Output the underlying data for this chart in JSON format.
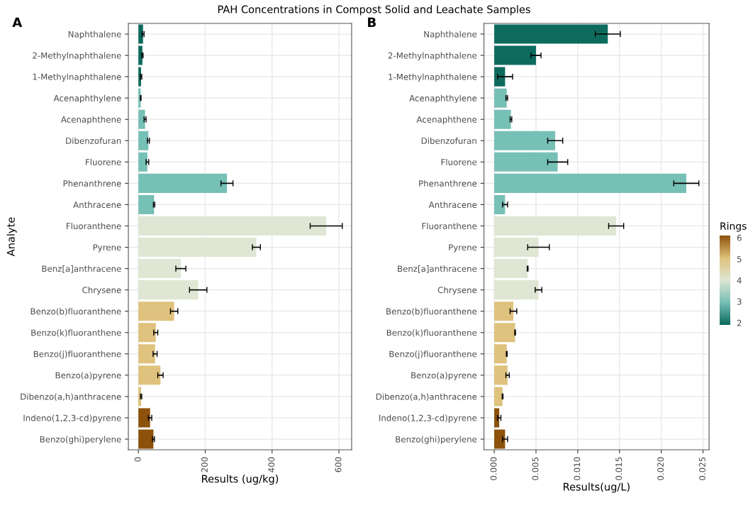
{
  "chart_data": [
    {
      "type": "bar",
      "orientation": "horizontal",
      "title": "PAH Concentrations in Compost Solid and Leachate Samples",
      "subtitle": "A",
      "xlabel": "Results (ug/kg)",
      "ylabel": "Analyte",
      "categories": [
        "Naphthalene",
        "2-Methylnaphthalene",
        "1-Methylnaphthalene",
        "Acenaphthylene",
        "Acenaphthene",
        "Dibenzofuran",
        "Fluorene",
        "Phenanthrene",
        "Anthracene",
        "Fluoranthene",
        "Pyrene",
        "Benz[a]anthracene",
        "Chrysene",
        "Benzo(b)fluoranthene",
        "Benzo(k)fluoranthene",
        "Benzo(j)fluoranthene",
        "Benzo(a)pyrene",
        "Dibenzo(a,h)anthracene",
        "Indeno(1,2,3-cd)pyrene",
        "Benzo(ghi)perylene"
      ],
      "values": [
        14,
        12,
        8,
        7,
        20,
        30,
        27,
        265,
        47,
        562,
        353,
        127,
        179,
        107,
        52,
        50,
        66,
        8,
        35,
        45
      ],
      "errors": [
        3,
        2,
        2,
        1,
        3,
        3,
        4,
        18,
        2,
        48,
        12,
        15,
        26,
        11,
        6,
        6,
        8,
        2,
        5,
        3
      ],
      "colors": [
        "#0d6b5e",
        "#0d6b5e",
        "#0d6b5e",
        "#76c0b6",
        "#76c0b6",
        "#76c0b6",
        "#76c0b6",
        "#76c0b6",
        "#76c0b6",
        "#dfe6d3",
        "#dfe6d3",
        "#dfe6d3",
        "#dfe6d3",
        "#dfc27d",
        "#dfc27d",
        "#dfc27d",
        "#dfc27d",
        "#dfc27d",
        "#8c510a",
        "#8c510a"
      ],
      "xlim": [
        -30,
        638
      ],
      "xticks": [
        0,
        200,
        400,
        600
      ],
      "grid": true
    },
    {
      "type": "bar",
      "orientation": "horizontal",
      "subtitle": "B",
      "xlabel": "Results(ug/L)",
      "clabel": "Rings",
      "clim": [
        1.9,
        6.1
      ],
      "cticks": [
        2,
        3,
        4,
        5,
        6
      ],
      "categories": [
        "Naphthalene",
        "2-Methylnaphthalene",
        "1-Methylnaphthalene",
        "Acenaphthylene",
        "Acenaphthene",
        "Dibenzofuran",
        "Fluorene",
        "Phenanthrene",
        "Anthracene",
        "Fluoranthene",
        "Pyrene",
        "Benz[a]anthracene",
        "Chrysene",
        "Benzo(b)fluoranthene",
        "Benzo(k)fluoranthene",
        "Benzo(j)fluoranthene",
        "Benzo(a)pyrene",
        "Dibenzo(a,h)anthracene",
        "Indeno(1,2,3-cd)pyrene",
        "Benzo(ghi)perylene"
      ],
      "values": [
        0.0136,
        0.005,
        0.0013,
        0.0015,
        0.002,
        0.0073,
        0.0076,
        0.023,
        0.0013,
        0.0146,
        0.0053,
        0.004,
        0.0053,
        0.0023,
        0.0025,
        0.0015,
        0.0016,
        0.001,
        0.0006,
        0.0013
      ],
      "errors": [
        0.0015,
        0.0006,
        0.0009,
        0.0001,
        0.0001,
        0.0009,
        0.0012,
        0.0015,
        0.0003,
        0.0009,
        0.0013,
        5e-05,
        0.0004,
        0.0004,
        5e-05,
        5e-05,
        0.0002,
        5e-05,
        0.0002,
        0.0003
      ],
      "colors": [
        "#0d6b5e",
        "#0d6b5e",
        "#0d6b5e",
        "#76c0b6",
        "#76c0b6",
        "#76c0b6",
        "#76c0b6",
        "#76c0b6",
        "#76c0b6",
        "#dfe6d3",
        "#dfe6d3",
        "#dfe6d3",
        "#dfe6d3",
        "#dfc27d",
        "#dfc27d",
        "#dfc27d",
        "#dfc27d",
        "#dfc27d",
        "#8c510a",
        "#8c510a"
      ],
      "xlim": [
        -0.00123,
        0.02573
      ],
      "xticks": [
        {
          "value": 0,
          "label": "0.000"
        },
        {
          "value": 0.005,
          "label": "0.005"
        },
        {
          "value": 0.01,
          "label": "0.010"
        },
        {
          "value": 0.015,
          "label": "0.015"
        },
        {
          "value": 0.02,
          "label": "0.020"
        },
        {
          "value": 0.025,
          "label": "0.025"
        }
      ],
      "grid": true
    }
  ]
}
